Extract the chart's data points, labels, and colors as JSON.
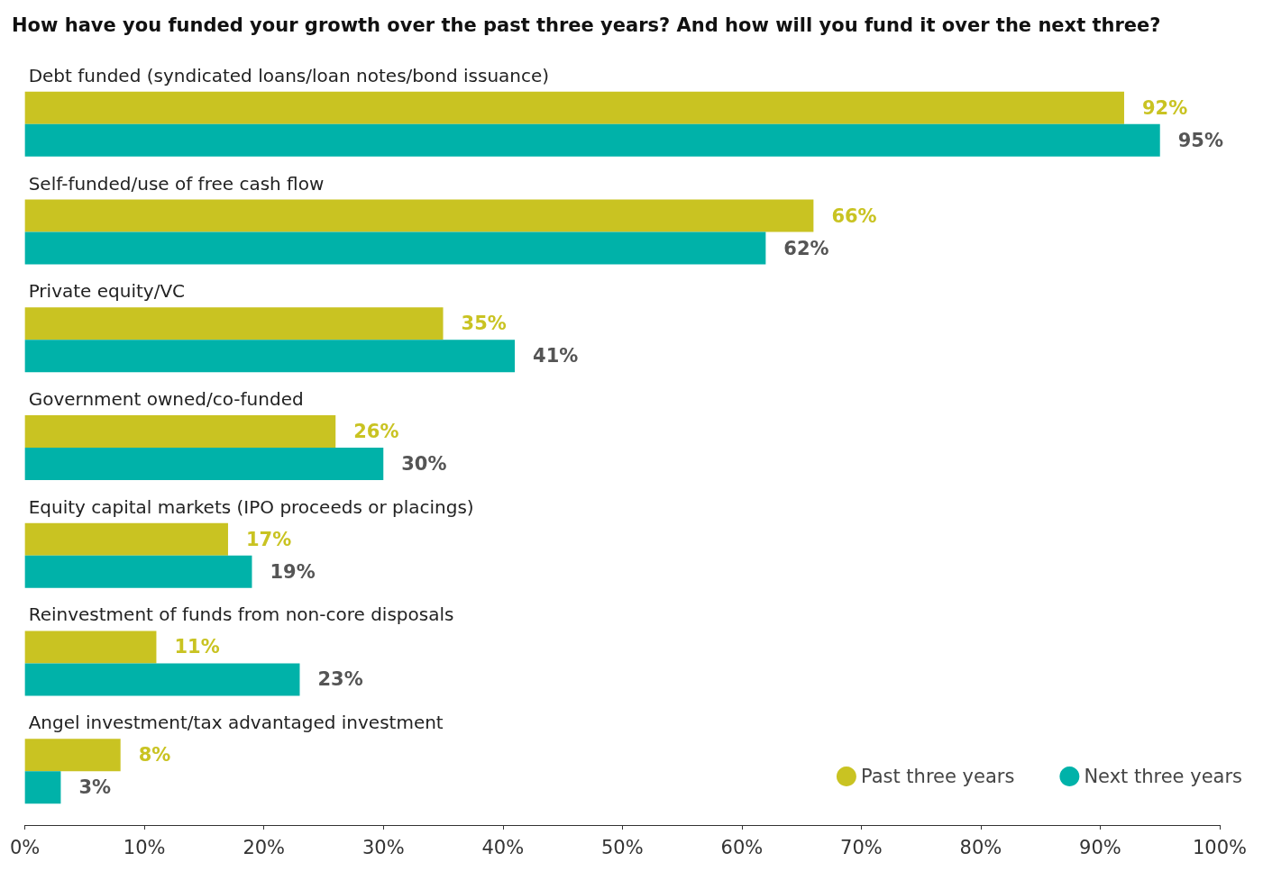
{
  "chart_data": {
    "type": "bar",
    "orientation": "horizontal",
    "title": "How have you funded your growth over the past three years? And how will you fund it over the next three?",
    "categories": [
      "Debt funded (syndicated loans/loan notes/bond issuance)",
      "Self-funded/use of free cash flow",
      "Private equity/VC",
      "Government owned/co-funded",
      "Equity capital markets (IPO proceeds or placings)",
      "Reinvestment of funds from non-core disposals",
      "Angel investment/tax advantaged investment"
    ],
    "series": [
      {
        "name": "Past three years",
        "color": "#c9c322",
        "values": [
          92,
          66,
          35,
          26,
          17,
          11,
          8
        ],
        "value_labels": [
          "92%",
          "66%",
          "35%",
          "26%",
          "17%",
          "11%",
          "8%"
        ]
      },
      {
        "name": "Next three years",
        "color": "#00b2a9",
        "values": [
          95,
          62,
          41,
          30,
          19,
          23,
          3
        ],
        "value_labels": [
          "95%",
          "62%",
          "41%",
          "30%",
          "19%",
          "23%",
          "3%"
        ]
      }
    ],
    "xlim": [
      0,
      100
    ],
    "xticks": [
      {
        "value": 0,
        "label": "0%"
      },
      {
        "value": 10,
        "label": "10%"
      },
      {
        "value": 20,
        "label": "20%"
      },
      {
        "value": 30,
        "label": "30%"
      },
      {
        "value": 40,
        "label": "40%"
      },
      {
        "value": 50,
        "label": "50%"
      },
      {
        "value": 60,
        "label": "60%"
      },
      {
        "value": 70,
        "label": "70%"
      },
      {
        "value": 80,
        "label": "80%"
      },
      {
        "value": 90,
        "label": "90%"
      },
      {
        "value": 100,
        "label": "100%"
      }
    ],
    "grid": false,
    "legend": "bottom right"
  }
}
